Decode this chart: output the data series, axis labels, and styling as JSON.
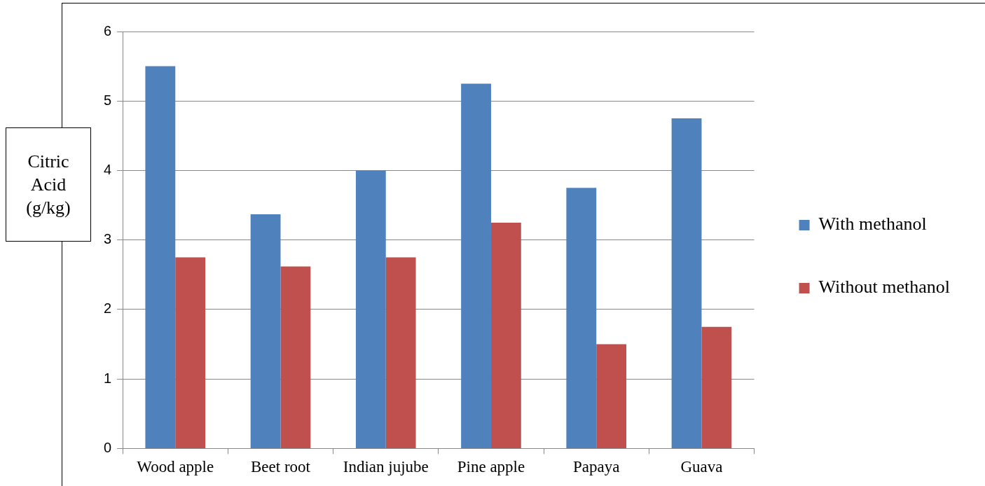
{
  "chart_data": {
    "type": "bar",
    "ylabel": "Citric Acid (g/kg)",
    "categories": [
      "Wood apple",
      "Beet root",
      "Indian jujube",
      "Pine apple",
      "Papaya",
      "Guava"
    ],
    "series": [
      {
        "name": "With methanol",
        "color": "#4f81bd",
        "values": [
          5.5,
          3.37,
          4.0,
          5.25,
          3.75,
          4.75
        ]
      },
      {
        "name": "Without methanol",
        "color": "#c0504d",
        "values": [
          2.75,
          2.62,
          2.75,
          3.25,
          1.5,
          1.75
        ]
      }
    ],
    "ylim": [
      0,
      6
    ],
    "yticks": [
      0,
      1,
      2,
      3,
      4,
      5,
      6
    ],
    "grid": "y",
    "legend": "right"
  }
}
